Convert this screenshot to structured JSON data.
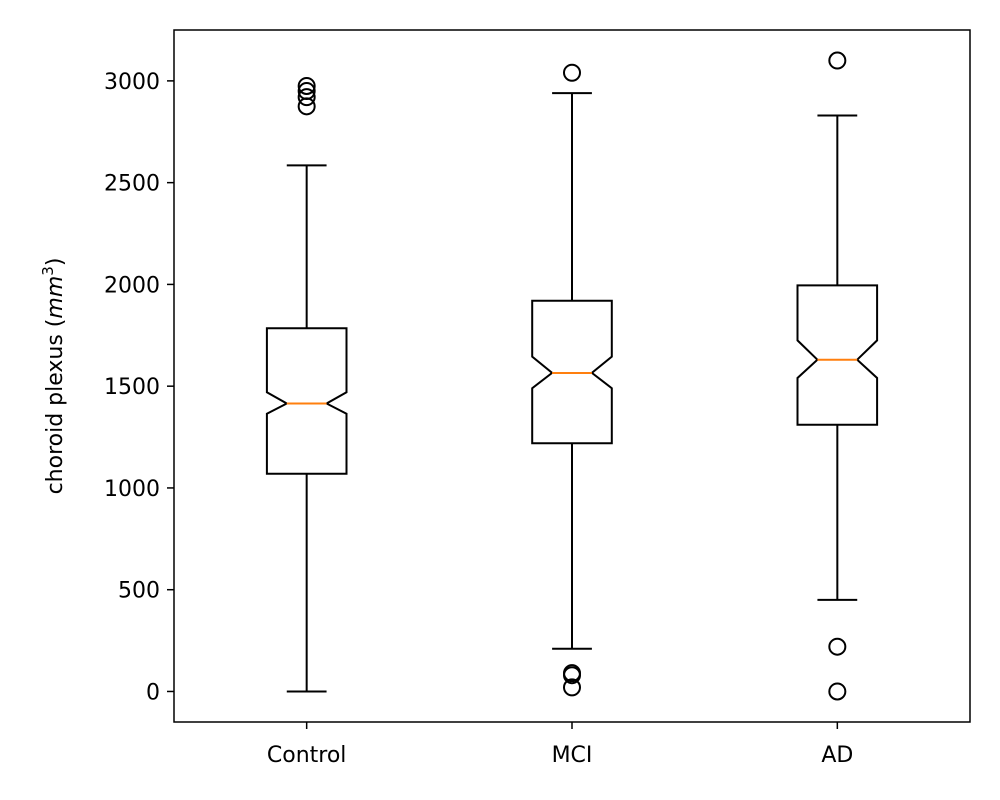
{
  "chart_data": {
    "type": "boxplot",
    "notched": true,
    "title": "",
    "xlabel": "",
    "ylabel": "choroid plexus (",
    "ylabel_unit": "mm",
    "ylabel_exp": "3",
    "ylabel_close": ")",
    "ylim": [
      -150,
      3250
    ],
    "yticks": [
      0,
      500,
      1000,
      1500,
      2000,
      2500,
      3000
    ],
    "ytick_labels": [
      "0",
      "500",
      "1000",
      "1500",
      "2000",
      "2500",
      "3000"
    ],
    "categories": [
      "Control",
      "MCI",
      "AD"
    ],
    "groups": [
      {
        "name": "Control",
        "q1": 1070,
        "median": 1415,
        "q3": 1785,
        "notch_low": 1365,
        "notch_high": 1470,
        "whisker_low": 0,
        "whisker_high": 2585,
        "outliers": [
          2875,
          2920,
          2950,
          2975
        ]
      },
      {
        "name": "MCI",
        "q1": 1220,
        "median": 1565,
        "q3": 1920,
        "notch_low": 1490,
        "notch_high": 1645,
        "whisker_low": 210,
        "whisker_high": 2940,
        "outliers": [
          20,
          80,
          90,
          3040
        ]
      },
      {
        "name": "AD",
        "q1": 1310,
        "median": 1630,
        "q3": 1995,
        "notch_low": 1540,
        "notch_high": 1725,
        "whisker_low": 450,
        "whisker_high": 2830,
        "outliers": [
          0,
          220,
          3100
        ]
      }
    ],
    "colors": {
      "box": "#000000",
      "median": "#ff7f0e",
      "outlier": "#000000"
    }
  }
}
